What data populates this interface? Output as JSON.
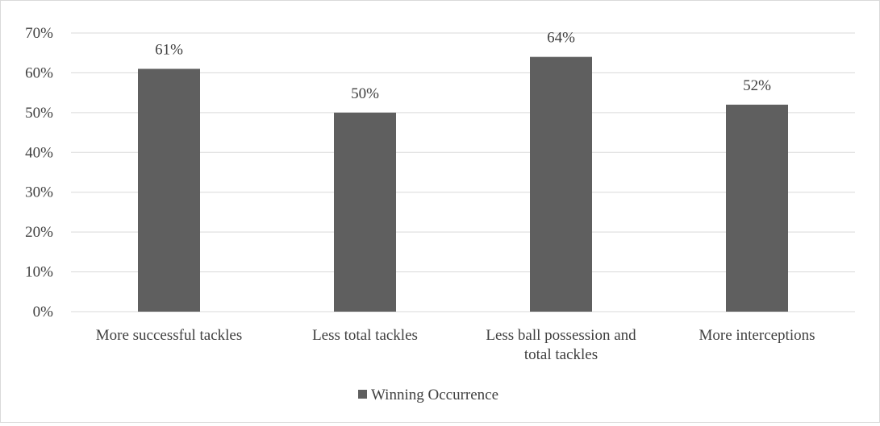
{
  "chart_data": {
    "type": "bar",
    "categories": [
      [
        "More successful tackles"
      ],
      [
        "Less total tackles"
      ],
      [
        "Less ball possession and",
        "total tackles"
      ],
      [
        "More interceptions"
      ]
    ],
    "series": [
      {
        "name": "Winning Occurrence",
        "values": [
          61,
          50,
          64,
          52
        ],
        "data_labels": [
          "61%",
          "50%",
          "64%",
          "52%"
        ],
        "color": "#5f5f5f"
      }
    ],
    "yticks": [
      "0%",
      "10%",
      "20%",
      "30%",
      "40%",
      "50%",
      "60%",
      "70%"
    ],
    "ylim": [
      0,
      70
    ],
    "grid": true,
    "legend_position": "bottom",
    "title": "",
    "xlabel": "",
    "ylabel": ""
  }
}
